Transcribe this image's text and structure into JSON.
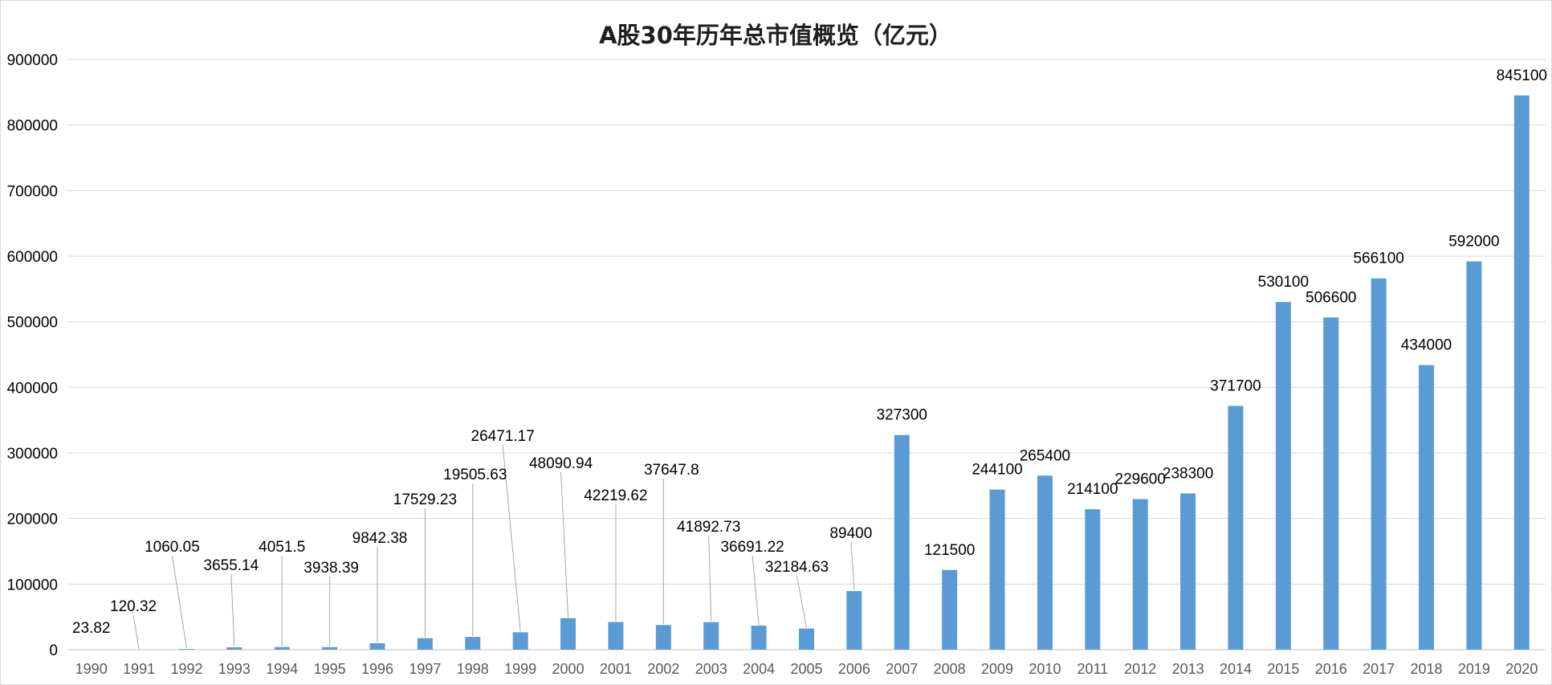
{
  "chart_data": {
    "type": "bar",
    "title": "A股30年历年总市值概览（亿元）",
    "xlabel": "",
    "ylabel": "",
    "ylim": [
      0,
      900000
    ],
    "yticks": [
      0,
      100000,
      200000,
      300000,
      400000,
      500000,
      600000,
      700000,
      800000,
      900000
    ],
    "ytick_labels": [
      "0",
      "100000",
      "200000",
      "300000",
      "400000",
      "500000",
      "600000",
      "700000",
      "800000",
      "900000"
    ],
    "grid": true,
    "legend": "none",
    "bar_color": "#5b9bd5",
    "categories": [
      "1990",
      "1991",
      "1992",
      "1993",
      "1994",
      "1995",
      "1996",
      "1997",
      "1998",
      "1999",
      "2000",
      "2001",
      "2002",
      "2003",
      "2004",
      "2005",
      "2006",
      "2007",
      "2008",
      "2009",
      "2010",
      "2011",
      "2012",
      "2013",
      "2014",
      "2015",
      "2016",
      "2017",
      "2018",
      "2019",
      "2020"
    ],
    "values": [
      23.82,
      120.32,
      1060.05,
      3655.14,
      4051.5,
      3938.39,
      9842.38,
      17529.23,
      19505.63,
      26471.17,
      48090.94,
      42219.62,
      37647.8,
      41892.73,
      36691.22,
      32184.63,
      89400,
      327300,
      121500,
      244100,
      265400,
      214100,
      229600,
      238300,
      371700,
      530100,
      506600,
      566100,
      434000,
      592000,
      845100
    ],
    "data_labels": [
      "23.82",
      "120.32",
      "1060.05",
      "3655.14",
      "4051.5",
      "3938.39",
      "9842.38",
      "17529.23",
      "19505.63",
      "26471.17",
      "48090.94",
      "42219.62",
      "37647.8",
      "41892.73",
      "36691.22",
      "32184.63",
      "89400",
      "327300",
      "121500",
      "244100",
      "265400",
      "214100",
      "229600",
      "238300",
      "371700",
      "530100",
      "506600",
      "566100",
      "434000",
      "592000",
      "845100"
    ]
  }
}
